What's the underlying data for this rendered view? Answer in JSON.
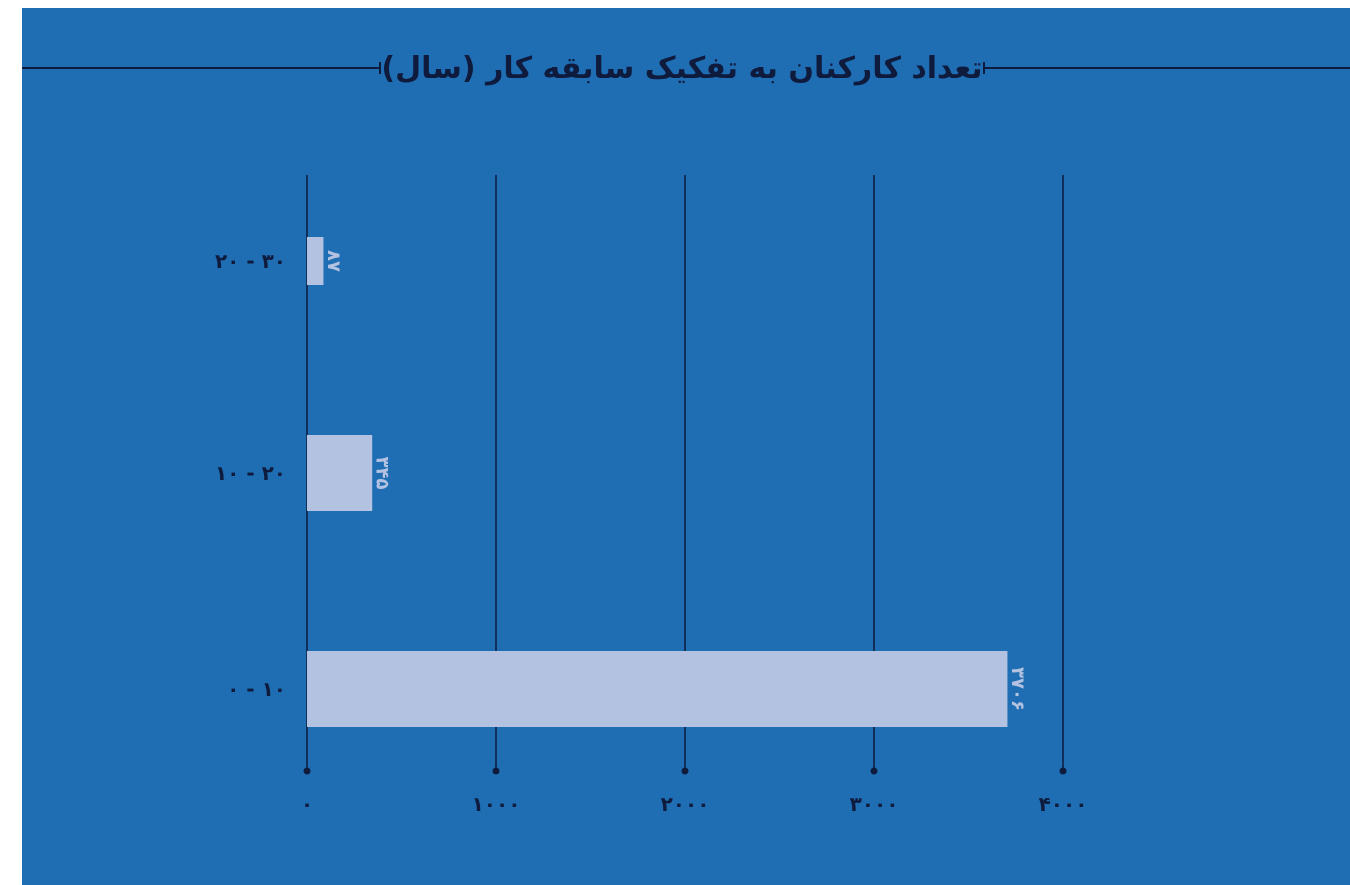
{
  "chart_data": {
    "type": "bar",
    "orientation": "horizontal",
    "title": "تعداد کارکنان به تفکیک سابقه کار (سال)",
    "categories": [
      "۲۰ - ۳۰",
      "۱۰ - ۲۰",
      "۰ - ۱۰"
    ],
    "values": [
      87,
      345,
      3706
    ],
    "value_labels": [
      "۸۷",
      "۳۴۵",
      "۳۷۰۶"
    ],
    "xlim": [
      0,
      4000
    ],
    "x_ticks": [
      0,
      1000,
      2000,
      3000,
      4000
    ],
    "x_tick_labels": [
      "۰",
      "۱۰۰۰",
      "۲۰۰۰",
      "۳۰۰۰",
      "۴۰۰۰"
    ],
    "grid": true,
    "legend": "none"
  },
  "colors": {
    "background": "#1f6db2",
    "bar": "#b4c2e2",
    "ink": "#0f1b3d",
    "value_label": "#b4c2e2"
  }
}
